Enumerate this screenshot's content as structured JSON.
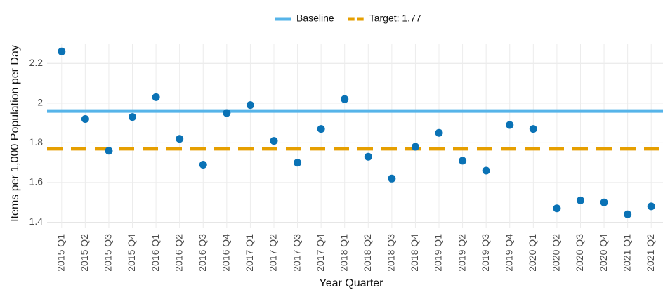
{
  "chart_data": {
    "type": "scatter",
    "categories": [
      "2015 Q1",
      "2015 Q2",
      "2015 Q3",
      "2015 Q4",
      "2016 Q1",
      "2016 Q2",
      "2016 Q3",
      "2016 Q4",
      "2017 Q1",
      "2017 Q2",
      "2017 Q3",
      "2017 Q4",
      "2018 Q1",
      "2018 Q2",
      "2018 Q3",
      "2018 Q4",
      "2019 Q1",
      "2019 Q2",
      "2019 Q3",
      "2019 Q4",
      "2020 Q1",
      "2020 Q2",
      "2020 Q3",
      "2020 Q4",
      "2021 Q1",
      "2021 Q2"
    ],
    "values": [
      2.26,
      1.92,
      1.76,
      1.93,
      2.03,
      1.82,
      1.69,
      1.95,
      1.99,
      1.81,
      1.7,
      1.87,
      2.02,
      1.73,
      1.62,
      1.78,
      1.85,
      1.71,
      1.66,
      1.89,
      1.87,
      1.47,
      1.51,
      1.5,
      1.44,
      1.48
    ],
    "color": "#0a72b5",
    "reference_lines": [
      {
        "name": "Baseline",
        "value": 1.96,
        "color": "#56b4e9",
        "style": "solid"
      },
      {
        "name": "Target: 1.77",
        "value": 1.77,
        "color": "#e69f00",
        "style": "dashed"
      }
    ],
    "xlabel": "Year Quarter",
    "ylabel": "Items per 1,000 Population per Day",
    "ylim": [
      1.37,
      2.3
    ],
    "yticks": [
      1.4,
      1.6,
      1.8,
      2.0,
      2.2
    ],
    "grid": true,
    "legend_position": "top"
  }
}
